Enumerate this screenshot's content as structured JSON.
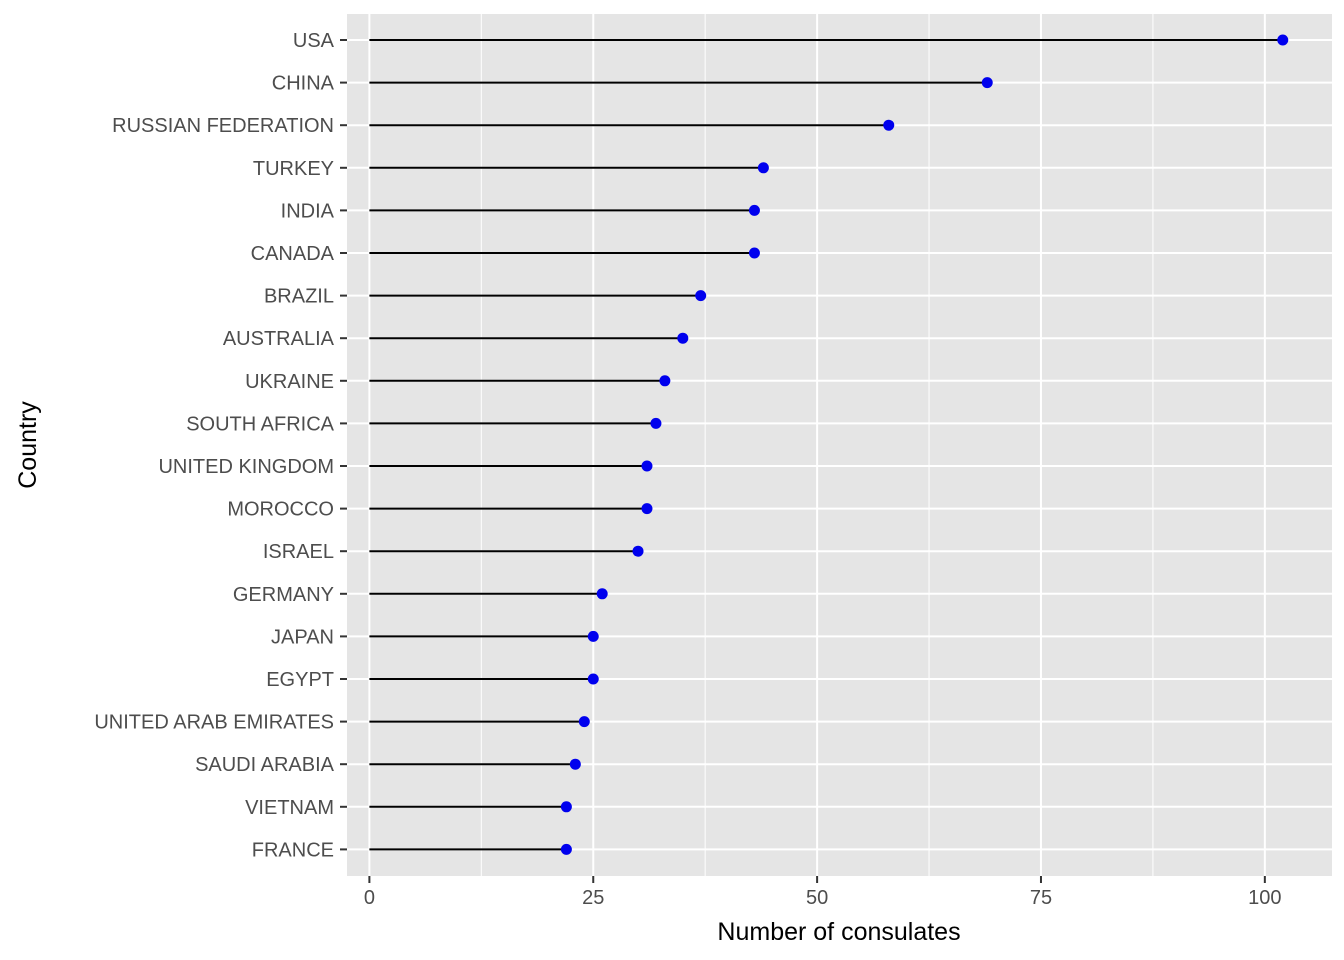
{
  "chart_data": {
    "type": "lollipop",
    "xlabel": "Number of consulates",
    "ylabel": "Country",
    "xlim": [
      -2.5,
      107.5
    ],
    "x_ticks": [
      0,
      25,
      50,
      75,
      100
    ],
    "x_minor_ticks": [
      12.5,
      37.5,
      62.5,
      87.5
    ],
    "grid": true,
    "colors": {
      "panel": "#e5e5e5",
      "grid": "#ffffff",
      "segment": "#000000",
      "point": "#0000ee",
      "tick_text": "#4d4d4d",
      "tick_mark": "#333333"
    },
    "categories": [
      "USA",
      "CHINA",
      "RUSSIAN FEDERATION",
      "TURKEY",
      "INDIA",
      "CANADA",
      "BRAZIL",
      "AUSTRALIA",
      "UKRAINE",
      "SOUTH AFRICA",
      "UNITED KINGDOM",
      "MOROCCO",
      "ISRAEL",
      "GERMANY",
      "JAPAN",
      "EGYPT",
      "UNITED ARAB EMIRATES",
      "SAUDI ARABIA",
      "VIETNAM",
      "FRANCE"
    ],
    "values": [
      102,
      69,
      58,
      44,
      43,
      43,
      37,
      35,
      33,
      32,
      31,
      31,
      30,
      26,
      25,
      25,
      24,
      23,
      22,
      22
    ]
  }
}
